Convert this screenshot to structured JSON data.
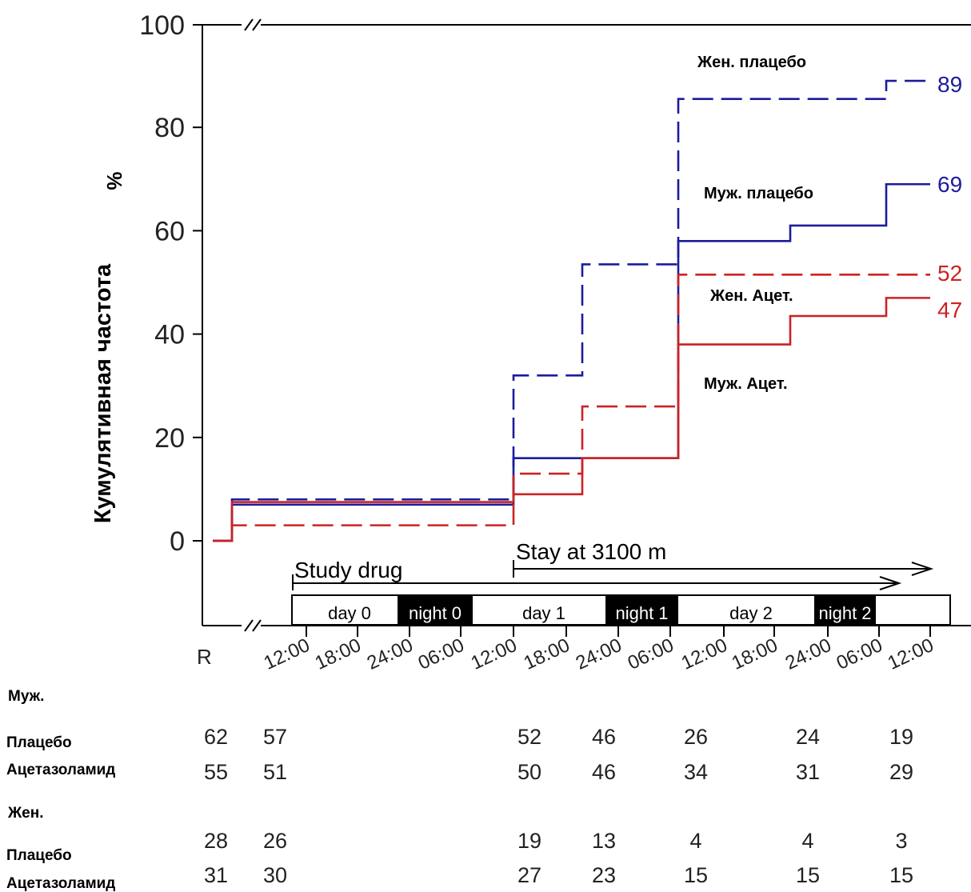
{
  "chart_data": {
    "type": "line",
    "step": true,
    "ylabel": "Кумулятивная частота",
    "yunit": "%",
    "ylim": [
      0,
      100
    ],
    "yticks": [
      0,
      20,
      40,
      60,
      80,
      100
    ],
    "x_timepoints": [
      "R",
      "12:00",
      "18:00",
      "24:00",
      "06:00",
      "12:00",
      "18:00",
      "24:00",
      "06:00",
      "12:00",
      "18:00",
      "24:00",
      "06:00",
      "12:00"
    ],
    "series": [
      {
        "name": "Жен. плацебо",
        "color": "#1c1c9c",
        "dash": true,
        "steps": [
          {
            "x": "R",
            "y": 0
          },
          {
            "x": "R+",
            "y": 8
          },
          {
            "x": "day1 12:00",
            "y": 32
          },
          {
            "x": "day1 20:00",
            "y": 53.5
          },
          {
            "x": "night1 06:00",
            "y": 85.5
          },
          {
            "x": "night2 05:00",
            "y": 89
          }
        ],
        "end_label": "89"
      },
      {
        "name": "Муж. плацебо",
        "color": "#1c1c9c",
        "dash": false,
        "steps": [
          {
            "x": "R",
            "y": 0
          },
          {
            "x": "R+",
            "y": 7
          },
          {
            "x": "day1 12:00",
            "y": 16
          },
          {
            "x": "night1 06:00",
            "y": 58
          },
          {
            "x": "day2 18:00",
            "y": 61
          },
          {
            "x": "night2 05:00",
            "y": 69
          }
        ],
        "end_label": "69"
      },
      {
        "name": "Жен. Ацет.",
        "color": "#cc2222",
        "dash": true,
        "steps": [
          {
            "x": "R",
            "y": 0
          },
          {
            "x": "R+",
            "y": 3
          },
          {
            "x": "day1 12:00",
            "y": 13
          },
          {
            "x": "day1 20:00",
            "y": 26
          },
          {
            "x": "night1 06:00",
            "y": 51.5
          }
        ],
        "end_label": "52"
      },
      {
        "name": "Муж. Ацет.",
        "color": "#cc2222",
        "dash": false,
        "steps": [
          {
            "x": "R",
            "y": 0
          },
          {
            "x": "R+",
            "y": 7.5
          },
          {
            "x": "day1 12:00",
            "y": 9
          },
          {
            "x": "day1 20:00",
            "y": 16
          },
          {
            "x": "night1 06:00",
            "y": 38
          },
          {
            "x": "day2 18:00",
            "y": 43.5
          },
          {
            "x": "night2 05:00",
            "y": 47
          }
        ],
        "end_label": "47"
      }
    ],
    "timeline": {
      "study_drug": "Study drug",
      "stay": "Stay at 3100 m",
      "periods": [
        {
          "label": "day 0",
          "dark": false
        },
        {
          "label": "night 0",
          "dark": true
        },
        {
          "label": "day 1",
          "dark": false
        },
        {
          "label": "night 1",
          "dark": true
        },
        {
          "label": "day 2",
          "dark": false
        },
        {
          "label": "night 2",
          "dark": true
        }
      ]
    },
    "at_risk": {
      "groups": [
        {
          "title": "Муж.",
          "rows": [
            {
              "label": "Плацебо",
              "values": [
                "62",
                "57",
                "52",
                "46",
                "26",
                "24",
                "19"
              ]
            },
            {
              "label": "Ацетазоламид",
              "values": [
                "55",
                "51",
                "50",
                "46",
                "34",
                "31",
                "29"
              ]
            }
          ]
        },
        {
          "title": "Жен.",
          "rows": [
            {
              "label": "Плацебо",
              "values": [
                "28",
                "26",
                "19",
                "13",
                "4",
                "4",
                "3"
              ]
            },
            {
              "label": "Ацетазоламид",
              "values": [
                "31",
                "30",
                "27",
                "23",
                "15",
                "15",
                "15"
              ]
            }
          ]
        }
      ]
    }
  }
}
